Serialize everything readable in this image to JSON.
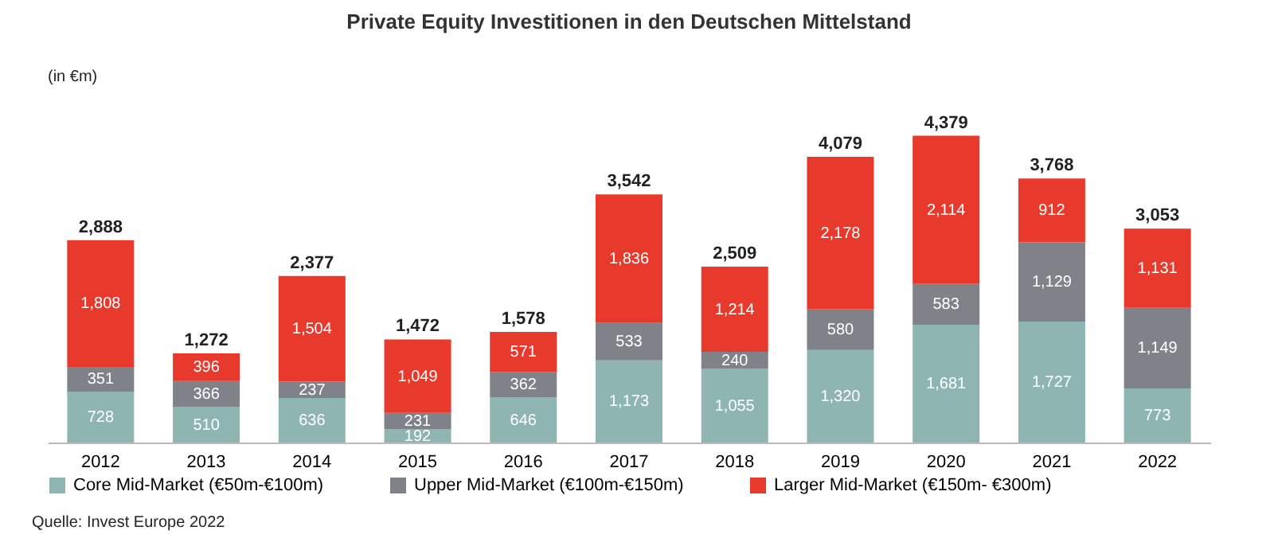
{
  "chart_data": {
    "type": "bar",
    "title": "Private Equity Investitionen in den Deutschen Mittelstand",
    "ylabel": "(in €m)",
    "categories": [
      "2012",
      "2013",
      "2014",
      "2015",
      "2016",
      "2017",
      "2018",
      "2019",
      "2020",
      "2021",
      "2022"
    ],
    "stacked": true,
    "legend": "bottom",
    "series": [
      {
        "name": "Core Mid-Market (€50m-€100m)",
        "color": "#8fb5b3",
        "values": [
          728,
          510,
          636,
          192,
          646,
          1173,
          1055,
          1320,
          1681,
          1727,
          773
        ],
        "value_labels": [
          "728",
          "510",
          "636",
          "192",
          "646",
          "1,173",
          "1,055",
          "1,320",
          "1,681",
          "1,727",
          "773"
        ]
      },
      {
        "name": "Upper Mid-Market (€100m-€150m)",
        "color": "#7f8289",
        "values": [
          351,
          366,
          237,
          231,
          362,
          533,
          240,
          580,
          583,
          1129,
          1149
        ],
        "value_labels": [
          "351",
          "366",
          "237",
          "231",
          "362",
          "533",
          "240",
          "580",
          "583",
          "1,129",
          "1,149"
        ]
      },
      {
        "name": "Larger Mid-Market (€150m- €300m)",
        "color": "#e8392d",
        "values": [
          1808,
          396,
          1504,
          1049,
          571,
          1836,
          1214,
          2178,
          2114,
          912,
          1131
        ],
        "value_labels": [
          "1,808",
          "396",
          "1,504",
          "1,049",
          "571",
          "1,836",
          "1,214",
          "2,178",
          "2,114",
          "912",
          "1,131"
        ]
      }
    ],
    "totals": [
      "2,888",
      "1,272",
      "2,377",
      "1,472",
      "1,578",
      "3,542",
      "2,509",
      "4,079",
      "4,379",
      "3,768",
      "3,053"
    ],
    "annotations": [
      "Quelle: Invest Europe 2022"
    ]
  }
}
